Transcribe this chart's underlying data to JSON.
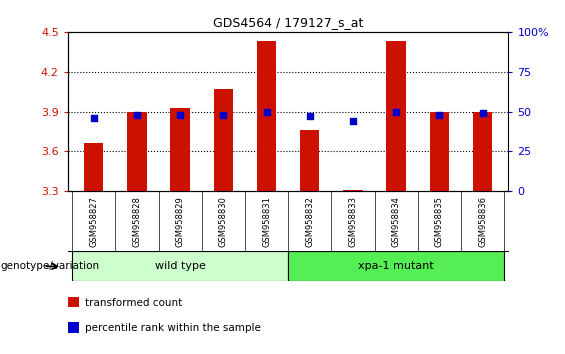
{
  "title": "GDS4564 / 179127_s_at",
  "samples": [
    "GSM958827",
    "GSM958828",
    "GSM958829",
    "GSM958830",
    "GSM958831",
    "GSM958832",
    "GSM958833",
    "GSM958834",
    "GSM958835",
    "GSM958836"
  ],
  "transformed_count": [
    3.66,
    3.9,
    3.93,
    4.07,
    4.43,
    3.76,
    3.305,
    4.43,
    3.9,
    3.9
  ],
  "percentile_rank": [
    46,
    48,
    48,
    48,
    50,
    47,
    44,
    50,
    48,
    49
  ],
  "ylim_left": [
    3.3,
    4.5
  ],
  "ylim_right": [
    0,
    100
  ],
  "yticks_left": [
    3.3,
    3.6,
    3.9,
    4.2,
    4.5
  ],
  "yticks_right": [
    0,
    25,
    50,
    75,
    100
  ],
  "bar_color": "#cc1100",
  "dot_color": "#0000cc",
  "bar_bottom": 3.3,
  "bar_width": 0.45,
  "grid_linestyle": "dotted",
  "groups": [
    {
      "label": "wild type",
      "start": 0,
      "end": 4,
      "color": "#ccffcc"
    },
    {
      "label": "xpa-1 mutant",
      "start": 5,
      "end": 9,
      "color": "#55ee55"
    }
  ],
  "group_label_prefix": "genotype/variation",
  "legend_items": [
    {
      "color": "#cc1100",
      "label": "transformed count"
    },
    {
      "color": "#0000cc",
      "label": "percentile rank within the sample"
    }
  ],
  "bg_color": "#ffffff",
  "plot_bg_color": "#ffffff",
  "tick_area_bg": "#c8c8c8"
}
